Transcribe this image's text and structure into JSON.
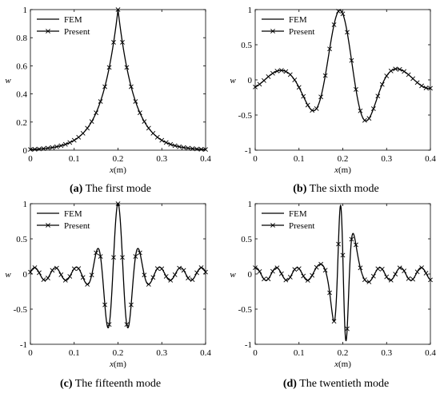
{
  "figure": {
    "captions": [
      {
        "letter": "(a)",
        "text": " The first mode"
      },
      {
        "letter": "(b)",
        "text": " The sixth mode"
      },
      {
        "letter": "(c)",
        "text": " The fifteenth mode"
      },
      {
        "letter": "(d)",
        "text": " The twentieth mode"
      }
    ]
  },
  "chart_data": [
    {
      "type": "line",
      "title": "",
      "xlabel": "x(m)",
      "ylabel": "w",
      "xlim": [
        0,
        0.4
      ],
      "ylim": [
        0,
        1
      ],
      "xticks": [
        "0",
        "0.1",
        "0.2",
        "0.3",
        "0.4"
      ],
      "yticks": [
        "0",
        "0.2",
        "0.4",
        "0.6",
        "0.8",
        "1"
      ],
      "legend": {
        "placement": "top-left",
        "entries": [
          "FEM",
          "Present"
        ]
      },
      "mode_shape": {
        "kind": "peak",
        "center": 0.2,
        "decay": 5.3
      },
      "series": [
        {
          "name": "FEM",
          "style": "solid"
        },
        {
          "name": "Present",
          "style": "x-markers",
          "marker_count": 41
        }
      ],
      "grid": false
    },
    {
      "type": "line",
      "title": "",
      "xlabel": "x(m)",
      "ylabel": "w",
      "xlim": [
        0,
        0.4
      ],
      "ylim": [
        -1,
        1
      ],
      "xticks": [
        "0",
        "0.1",
        "0.2",
        "0.3",
        "0.4"
      ],
      "yticks": [
        "-1",
        "-0.5",
        "0",
        "0.5",
        "1"
      ],
      "legend": {
        "placement": "top-left",
        "entries": [
          "FEM",
          "Present"
        ]
      },
      "mode_shape": {
        "kind": "oscillation",
        "center": 0.2,
        "wavenumber": 46,
        "core_amp": 1.0,
        "tail_amp": 0.12,
        "core_width": 0.05,
        "phase": 0.35
      },
      "series": [
        {
          "name": "FEM",
          "style": "solid"
        },
        {
          "name": "Present",
          "style": "x-markers",
          "marker_count": 41
        }
      ],
      "grid": false
    },
    {
      "type": "line",
      "title": "",
      "xlabel": "x(m)",
      "ylabel": "w",
      "xlim": [
        0,
        0.4
      ],
      "ylim": [
        -1,
        1
      ],
      "xticks": [
        "0",
        "0.1",
        "0.2",
        "0.3",
        "0.4"
      ],
      "yticks": [
        "-1",
        "-0.5",
        "0",
        "0.5",
        "1"
      ],
      "legend": {
        "placement": "top-left",
        "entries": [
          "FEM",
          "Present"
        ]
      },
      "mode_shape": {
        "kind": "oscillation",
        "center": 0.2,
        "wavenumber": 132,
        "core_amp": 1.0,
        "tail_amp": 0.09,
        "core_width": 0.03,
        "phase": 0
      },
      "series": [
        {
          "name": "FEM",
          "style": "solid"
        },
        {
          "name": "Present",
          "style": "x-markers",
          "marker_count": 41
        }
      ],
      "grid": false
    },
    {
      "type": "line",
      "title": "",
      "xlabel": "x(m)",
      "ylabel": "w",
      "xlim": [
        0,
        0.4
      ],
      "ylim": [
        -1,
        1
      ],
      "xticks": [
        "0",
        "0.1",
        "0.2",
        "0.3",
        "0.4"
      ],
      "yticks": [
        "-1",
        "-0.5",
        "0",
        "0.5",
        "1"
      ],
      "legend": {
        "placement": "top-left",
        "entries": [
          "FEM",
          "Present"
        ]
      },
      "mode_shape": {
        "kind": "oscillation",
        "center": 0.2,
        "wavenumber": 133,
        "core_amp": 1.0,
        "tail_amp": 0.09,
        "core_width": 0.022,
        "phase": 1.3,
        "core_wavenumber": 250
      },
      "series": [
        {
          "name": "FEM",
          "style": "solid"
        },
        {
          "name": "Present",
          "style": "x-markers",
          "marker_count": 41
        }
      ],
      "grid": false
    }
  ]
}
